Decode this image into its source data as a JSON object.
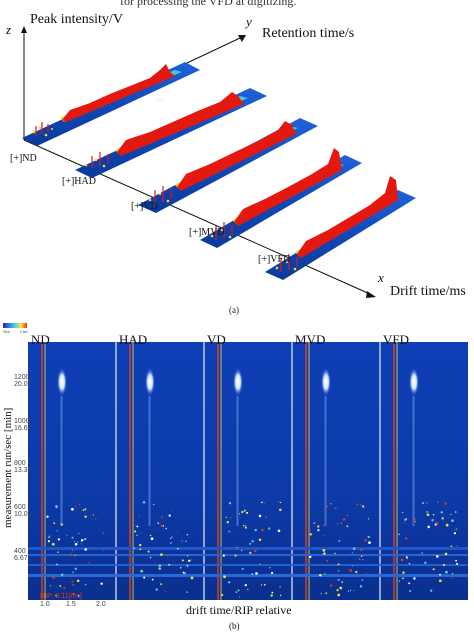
{
  "top_caption": "for processing the VFD at digitizing.",
  "panel_a": {
    "label": "(a)",
    "z_axis_letter": "z",
    "y_axis_letter": "y",
    "x_axis_letter": "x",
    "z_axis_label": "Peak intensity/V",
    "y_axis_label": "Retention time/s",
    "x_axis_label": "Drift time/ms",
    "samples": [
      "[+]ND",
      "[+]HAD",
      "[+]VD",
      "[+]MVD",
      "[+]VFD"
    ]
  },
  "panel_b": {
    "label": "(b)",
    "columns": [
      "ND",
      "HAD",
      "VD",
      "MVD",
      "VFD"
    ],
    "y_axis_label": "measurement run/sec [min]",
    "x_axis_label": "drift time/RIP relative",
    "scale_labels": [
      "Sec",
      "Corr"
    ],
    "y_ticks": [
      "1200\n20.00",
      "1000\n16.67",
      "800\n13.33",
      "600\n10.00",
      "400\n6.67"
    ],
    "x_ticks": [
      "1.0",
      "1.5",
      "2.0"
    ],
    "rip_label": "RIP: 9.11[ms]"
  },
  "colors": {
    "background_heatmap": "#0d47b8",
    "peak_red": "#e3190f",
    "peak_yellow": "#f4e43a",
    "spot_white": "#f2f6ff"
  }
}
